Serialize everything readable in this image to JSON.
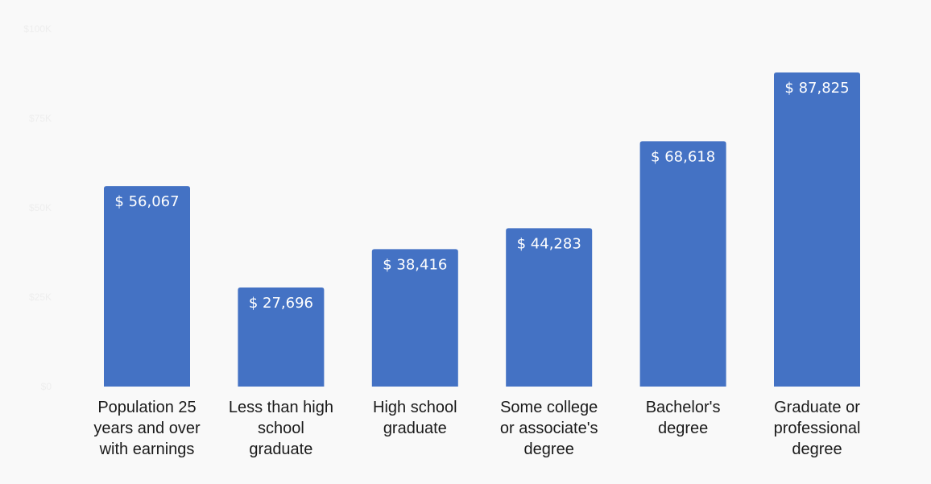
{
  "chart_data": {
    "type": "bar",
    "title": "",
    "xlabel": "",
    "ylabel": "",
    "categories": [
      [
        "Population 25",
        "years and over",
        "with earnings"
      ],
      [
        "Less than high",
        "school",
        "graduate"
      ],
      [
        "High school",
        "graduate"
      ],
      [
        "Some college",
        "or associate's",
        "degree"
      ],
      [
        "Bachelor's",
        "degree"
      ],
      [
        "Graduate or",
        "professional",
        "degree"
      ]
    ],
    "values": [
      56067,
      27696,
      38416,
      44283,
      68618,
      87825
    ],
    "data_labels": [
      "$ 56,067",
      "$ 27,696",
      "$ 38,416",
      "$ 44,283",
      "$ 68,618",
      "$ 87,825"
    ],
    "ylim": [
      0,
      100000
    ],
    "yticks": [
      0,
      25000,
      50000,
      75000,
      100000
    ],
    "ytick_labels": [
      "$0",
      "$25K",
      "$50K",
      "$75K",
      "$100K"
    ],
    "grid": false,
    "legend": "none",
    "colors": {
      "bar": "#4472c4",
      "background": "#f9f9f9",
      "value_text": "#ffffff"
    }
  }
}
